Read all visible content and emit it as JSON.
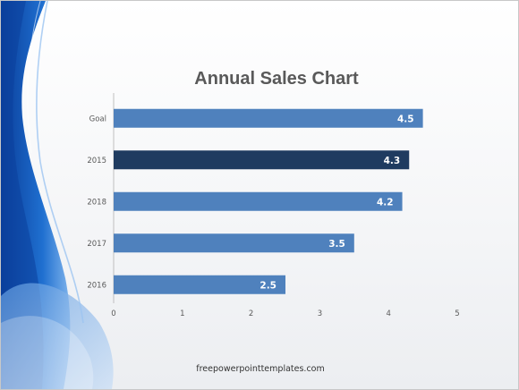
{
  "colors": {
    "bar": "#4f81bd",
    "highlight_bar": "#1f3b60",
    "accent_blue": "#1c5bb4"
  },
  "footer": {
    "text": "freepowerpointtemplates.com"
  },
  "chart_data": {
    "type": "bar",
    "orientation": "horizontal",
    "title": "Annual Sales Chart",
    "categories": [
      "Goal",
      "2015",
      "2018",
      "2017",
      "2016"
    ],
    "values": [
      4.5,
      4.3,
      4.2,
      3.5,
      2.5
    ],
    "data_labels": [
      "4.5",
      "4.3",
      "4.2",
      "3.5",
      "2.5"
    ],
    "highlight_category": "2015",
    "xlim": [
      0,
      5
    ],
    "xticks": [
      "0",
      "1",
      "2",
      "3",
      "4",
      "5"
    ],
    "grid": false,
    "legend": "none"
  }
}
